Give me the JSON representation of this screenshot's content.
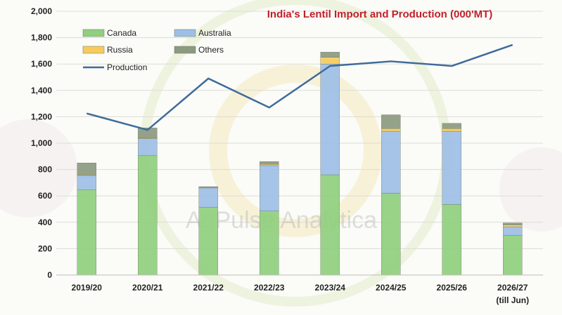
{
  "chart_data": {
    "type": "bar",
    "stacked": true,
    "title": "India's Lentil Import and  Production (000'MT)",
    "categories": [
      "2019/20",
      "2020/21",
      "2021/22",
      "2022/23",
      "2023/24",
      "2024/25",
      "2025/26",
      "2026/27"
    ],
    "category_sublabels": [
      "",
      "",
      "",
      "",
      "",
      "",
      "",
      "(till Jun)"
    ],
    "ylim": [
      0,
      2000
    ],
    "yticks": [
      0,
      200,
      400,
      600,
      800,
      1000,
      1200,
      1400,
      1600,
      1800,
      2000
    ],
    "ytick_labels": [
      "0",
      "200",
      "400",
      "600",
      "800",
      "1,000",
      "1,200",
      "1,400",
      "1,600",
      "1,800",
      "2,000"
    ],
    "grid": true,
    "legend_position": "top-left",
    "series": [
      {
        "name": "Canada",
        "kind": "bar",
        "color": "#8fcf7e",
        "values": [
          645,
          905,
          515,
          485,
          760,
          620,
          535,
          300
        ]
      },
      {
        "name": "Australia",
        "kind": "bar",
        "color": "#9dbfe6",
        "values": [
          110,
          130,
          145,
          345,
          840,
          470,
          555,
          65
        ]
      },
      {
        "name": "Russia",
        "kind": "bar",
        "color": "#f6cb5c",
        "values": [
          5,
          5,
          5,
          10,
          50,
          20,
          20,
          15
        ]
      },
      {
        "name": "Others",
        "kind": "bar",
        "color": "#8c9a80",
        "values": [
          90,
          75,
          5,
          20,
          40,
          105,
          40,
          15
        ]
      },
      {
        "name": "Production",
        "kind": "line",
        "color": "#3e6b9a",
        "values": [
          1225,
          1100,
          1490,
          1270,
          1585,
          1620,
          1585,
          1745
        ]
      }
    ],
    "watermark": "AgPulse Analytica"
  }
}
